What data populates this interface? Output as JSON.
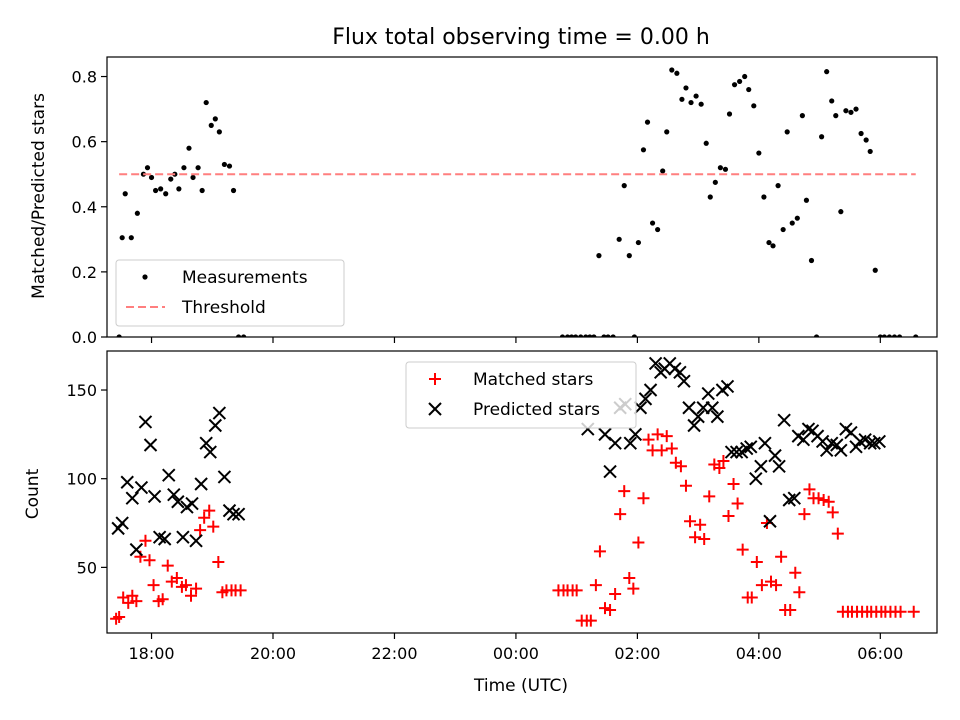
{
  "chart_data": [
    {
      "type": "scatter",
      "title": "Flux total observing time = 0.00 h",
      "xlabel": "",
      "ylabel": "Matched/Predicted stars",
      "xlim": [
        "17:16",
        "06:56"
      ],
      "ylim": [
        0,
        0.86
      ],
      "yticks": [
        0.0,
        0.2,
        0.4,
        0.6,
        0.8
      ],
      "ytick_labels": [
        "0.0",
        "0.2",
        "0.4",
        "0.6",
        "0.8"
      ],
      "legend_position": "lower-left",
      "series": [
        {
          "name": "Measurements",
          "color": "#000000",
          "marker": "dot",
          "x": [
            "17:28",
            "17:31",
            "17:34",
            "17:40",
            "17:46",
            "17:52",
            "17:56",
            "18:00",
            "18:04",
            "18:09",
            "18:14",
            "18:19",
            "18:23",
            "18:27",
            "18:32",
            "18:37",
            "18:41",
            "18:46",
            "18:50",
            "18:54",
            "18:59",
            "19:03",
            "19:07",
            "19:12",
            "19:17",
            "19:21",
            "19:26",
            "19:31",
            "00:46",
            "00:51",
            "00:55",
            "00:59",
            "01:04",
            "01:09",
            "01:13",
            "01:17",
            "01:22",
            "01:27",
            "01:31",
            "01:36",
            "01:42",
            "01:47",
            "01:52",
            "01:57",
            "02:01",
            "02:06",
            "02:10",
            "02:15",
            "02:20",
            "02:25",
            "02:29",
            "02:34",
            "02:39",
            "02:44",
            "02:48",
            "02:53",
            "02:58",
            "03:03",
            "03:08",
            "03:12",
            "03:17",
            "03:22",
            "03:27",
            "03:31",
            "03:36",
            "03:41",
            "03:46",
            "03:50",
            "03:55",
            "04:00",
            "04:05",
            "04:10",
            "04:14",
            "04:19",
            "04:24",
            "04:28",
            "04:33",
            "04:38",
            "04:43",
            "04:47",
            "04:52",
            "04:57",
            "05:02",
            "05:07",
            "05:12",
            "05:16",
            "05:21",
            "05:26",
            "05:31",
            "05:36",
            "05:41",
            "05:46",
            "05:50",
            "05:55",
            "06:00",
            "06:04",
            "06:09",
            "06:14",
            "06:19",
            "06:35"
          ],
          "y": [
            0.0,
            0.305,
            0.44,
            0.305,
            0.38,
            0.5,
            0.52,
            0.49,
            0.45,
            0.455,
            0.44,
            0.485,
            0.5,
            0.455,
            0.52,
            0.58,
            0.49,
            0.52,
            0.45,
            0.72,
            0.65,
            0.67,
            0.63,
            0.53,
            0.525,
            0.45,
            0.0,
            0.0,
            0.0,
            0.0,
            0.0,
            0.0,
            0.0,
            0.0,
            0.0,
            0.0,
            0.25,
            0.0,
            0.0,
            0.0,
            0.3,
            0.465,
            0.25,
            0.0,
            0.29,
            0.575,
            0.66,
            0.35,
            0.33,
            0.51,
            0.63,
            0.82,
            0.81,
            0.73,
            0.765,
            0.72,
            0.74,
            0.715,
            0.595,
            0.43,
            0.475,
            0.52,
            0.515,
            0.685,
            0.775,
            0.785,
            0.8,
            0.76,
            0.71,
            0.565,
            0.43,
            0.29,
            0.28,
            0.465,
            0.33,
            0.63,
            0.35,
            0.365,
            0.68,
            0.42,
            0.235,
            0.0,
            0.615,
            0.815,
            0.725,
            0.68,
            0.385,
            0.695,
            0.69,
            0.7,
            0.625,
            0.605,
            0.57,
            0.205,
            0.0,
            0.0,
            0.0,
            0.0,
            0.0,
            0.0
          ]
        },
        {
          "name": "Threshold",
          "color": "#ff7f7f",
          "line_style": "dashed",
          "x": [
            "17:28",
            "06:35"
          ],
          "y": [
            0.5,
            0.5
          ]
        }
      ]
    },
    {
      "type": "scatter",
      "title": "",
      "xlabel": "Time (UTC)",
      "ylabel": "Count",
      "xlim": [
        "17:16",
        "06:56"
      ],
      "ylim": [
        13,
        172
      ],
      "yticks": [
        50,
        100,
        150
      ],
      "ytick_labels": [
        "50",
        "100",
        "150"
      ],
      "xticks": [
        "18:00",
        "20:00",
        "22:00",
        "00:00",
        "02:00",
        "04:00",
        "06:00"
      ],
      "xtick_labels": [
        "18:00",
        "20:00",
        "22:00",
        "00:00",
        "02:00",
        "04:00",
        "06:00"
      ],
      "legend_position": "upper-center",
      "series": [
        {
          "name": "Matched stars",
          "color": "#ff0000",
          "marker": "plus",
          "x": [
            "17:25",
            "17:28",
            "17:32",
            "17:37",
            "17:41",
            "17:45",
            "17:49",
            "17:54",
            "17:58",
            "18:02",
            "18:07",
            "18:11",
            "18:16",
            "18:20",
            "18:25",
            "18:30",
            "18:34",
            "18:39",
            "18:44",
            "18:48",
            "18:52",
            "18:57",
            "19:01",
            "19:06",
            "19:10",
            "19:14",
            "19:19",
            "19:23",
            "19:28",
            "00:42",
            "00:47",
            "00:51",
            "00:56",
            "01:00",
            "01:05",
            "01:10",
            "01:14",
            "01:19",
            "01:23",
            "01:28",
            "01:33",
            "01:38",
            "01:43",
            "01:47",
            "01:52",
            "01:56",
            "02:01",
            "02:06",
            "02:11",
            "02:15",
            "02:20",
            "02:24",
            "02:29",
            "02:34",
            "02:38",
            "02:43",
            "02:48",
            "02:52",
            "02:57",
            "03:02",
            "03:06",
            "03:11",
            "03:16",
            "03:21",
            "03:25",
            "03:30",
            "03:35",
            "03:39",
            "03:44",
            "03:49",
            "03:53",
            "03:58",
            "04:03",
            "04:08",
            "04:12",
            "04:17",
            "04:22",
            "04:26",
            "04:31",
            "04:36",
            "04:40",
            "04:45",
            "04:50",
            "04:54",
            "04:59",
            "05:04",
            "05:09",
            "05:13",
            "05:18",
            "05:23",
            "05:28",
            "05:32",
            "05:37",
            "05:42",
            "05:47",
            "05:51",
            "05:56",
            "06:01",
            "06:05",
            "06:10",
            "06:15",
            "06:20",
            "06:33"
          ],
          "y": [
            21,
            22,
            33,
            30,
            34,
            31,
            56,
            65,
            54,
            40,
            31,
            32,
            51,
            42,
            44,
            39,
            40,
            34,
            38,
            71,
            78,
            82,
            73,
            53,
            36,
            37,
            37,
            37,
            37,
            37,
            37,
            37,
            37,
            37,
            20,
            20,
            20,
            40,
            59,
            27,
            26,
            35,
            80,
            93,
            44,
            38,
            64,
            89,
            122,
            116,
            125,
            116,
            124,
            117,
            109,
            107,
            96,
            76,
            67,
            74,
            66,
            90,
            108,
            106,
            110,
            79,
            97,
            86,
            60,
            33,
            33,
            53,
            40,
            75,
            42,
            40,
            56,
            26,
            26,
            47,
            36,
            80,
            94,
            89,
            89,
            88,
            87,
            81,
            69,
            25,
            25,
            25,
            25,
            25,
            25,
            25,
            25,
            25,
            25,
            25,
            25,
            25,
            25
          ],
          "_note_hidden_none": ""
        },
        {
          "name": "Predicted stars",
          "color": "#000000",
          "marker": "x",
          "x": [
            "17:27",
            "17:31",
            "17:36",
            "17:41",
            "17:45",
            "17:50",
            "17:54",
            "17:59",
            "18:03",
            "18:08",
            "18:13",
            "18:17",
            "18:22",
            "18:26",
            "18:31",
            "18:35",
            "18:40",
            "18:44",
            "18:49",
            "18:54",
            "18:58",
            "19:03",
            "19:07",
            "19:12",
            "19:17",
            "19:21",
            "19:26",
            "01:11",
            "01:28",
            "01:33",
            "01:38",
            "01:43",
            "01:48",
            "01:53",
            "01:58",
            "02:03",
            "02:08",
            "02:13",
            "02:18",
            "02:23",
            "02:27",
            "02:32",
            "02:37",
            "02:42",
            "02:46",
            "02:51",
            "02:56",
            "03:00",
            "03:05",
            "03:10",
            "03:14",
            "03:19",
            "03:24",
            "03:29",
            "03:33",
            "03:38",
            "03:43",
            "03:48",
            "03:52",
            "03:57",
            "04:02",
            "04:06",
            "04:11",
            "04:16",
            "04:20",
            "04:25",
            "04:30",
            "04:35",
            "04:39",
            "04:44",
            "04:49",
            "04:53",
            "04:58",
            "05:03",
            "05:07",
            "05:12",
            "05:17",
            "05:21",
            "05:26",
            "05:31",
            "05:36",
            "05:40",
            "05:45",
            "05:50",
            "05:54",
            "05:59"
          ],
          "y": [
            72,
            75,
            98,
            89,
            60,
            95,
            132,
            119,
            90,
            67,
            66,
            102,
            91,
            87,
            67,
            84,
            86,
            65,
            97,
            120,
            115,
            130,
            137,
            101,
            82,
            80,
            80,
            128,
            125,
            104,
            120,
            140,
            142,
            120,
            125,
            140,
            145,
            150,
            165,
            160,
            162,
            165,
            162,
            160,
            155,
            140,
            130,
            135,
            140,
            148,
            140,
            135,
            150,
            152,
            115,
            115,
            115,
            117,
            118,
            100,
            107,
            120,
            76,
            113,
            107,
            133,
            88,
            89,
            124,
            122,
            128,
            127,
            124,
            121,
            116,
            120,
            119,
            116,
            128,
            126,
            118,
            121,
            122,
            120,
            120,
            121
          ],
          "_note_hidden_none": ""
        }
      ]
    }
  ]
}
